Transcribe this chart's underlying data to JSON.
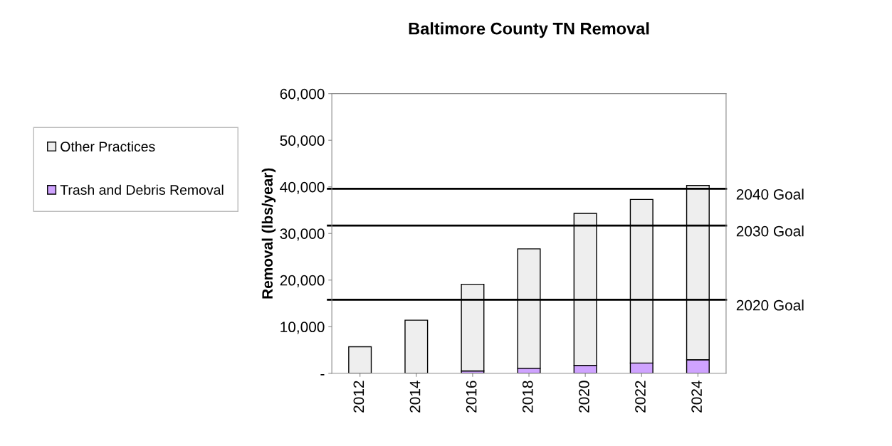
{
  "chart_data": {
    "type": "bar",
    "title": "Baltimore County TN Removal",
    "ylabel": "Removal (lbs/year)",
    "categories": [
      "2012",
      "2014",
      "2016",
      "2018",
      "2020",
      "2022",
      "2024"
    ],
    "stacked": true,
    "series": [
      {
        "name": "Trash and Debris Removal",
        "color": "#cfa3ff",
        "values": [
          0,
          0,
          500,
          1100,
          1700,
          2200,
          2900
        ]
      },
      {
        "name": "Other Practices",
        "color": "#eeeeee",
        "values": [
          5700,
          11400,
          18600,
          25600,
          32600,
          35100,
          37400
        ]
      }
    ],
    "ylim": [
      0,
      60000
    ],
    "yticks": [
      {
        "value": 0,
        "label": "-"
      },
      {
        "value": 10000,
        "label": "10,000"
      },
      {
        "value": 20000,
        "label": "20,000"
      },
      {
        "value": 30000,
        "label": "30,000"
      },
      {
        "value": 40000,
        "label": "40,000"
      },
      {
        "value": 50000,
        "label": "50,000"
      },
      {
        "value": 60000,
        "label": "60,000"
      }
    ],
    "ref_lines": [
      {
        "axis": "y",
        "value": 39600,
        "label": "2040 Goal",
        "color": "#000000"
      },
      {
        "axis": "y",
        "value": 31700,
        "label": "2030 Goal",
        "color": "#000000"
      },
      {
        "axis": "y",
        "value": 15800,
        "label": "2020 Goal",
        "color": "#000000"
      }
    ],
    "legend": "left",
    "grid": false
  }
}
